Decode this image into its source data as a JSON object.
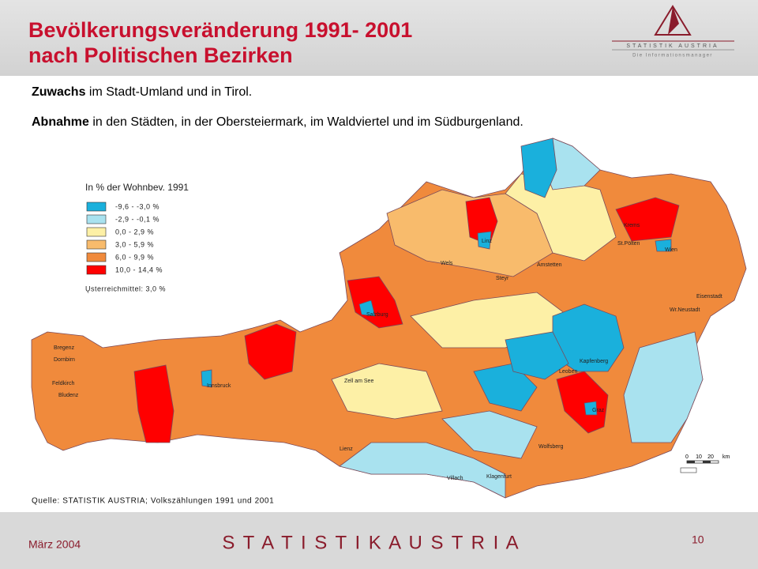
{
  "header": {
    "title_line1": "Bevölkerungsveränderung 1991- 2001",
    "title_line2": "nach Politischen Bezirken",
    "logo_name": "STATISTIK AUSTRIA",
    "logo_tagline": "Die Informationsmanager"
  },
  "bullets": [
    {
      "bold": "Zuwachs",
      "text": " im Stadt-Umland und in Tirol."
    },
    {
      "bold": "Abnahme",
      "text": " in den Städten, in der Obersteiermark, im Waldviertel und im Südburgenland."
    }
  ],
  "map": {
    "legend_title": "In % der Wohnbev. 1991",
    "legend": [
      {
        "label": "-9,6  -   -3,0 %",
        "color": "#1ab0dc"
      },
      {
        "label": "-2,9  -   -0,1 %",
        "color": "#a9e2ef"
      },
      {
        "label": "0,0  -    2,9 %",
        "color": "#fdf0a6"
      },
      {
        "label": "3,0  -    5,9 %",
        "color": "#f8bb6c"
      },
      {
        "label": "6,0  -    9,9 %",
        "color": "#f08a3c"
      },
      {
        "label": "10,0  -  14,4 %",
        "color": "#ff0000"
      }
    ],
    "average": "Ųsterreichmittel: 3,0 %",
    "towns": [
      "Bregenz",
      "Dornbirn",
      "Feldkirch",
      "Bludenz",
      "Innsbruck",
      "Salzburg",
      "Linz",
      "Wels",
      "Steyr",
      "Amstetten",
      "St.Pölten",
      "Krems",
      "Wien",
      "Eisenstadt",
      "Wr.Neustadt",
      "Kapfenberg",
      "Leoben",
      "Graz",
      "Zell am See",
      "Lienz",
      "Villach",
      "Klagenfurt",
      "Wolfsberg"
    ],
    "scale_labels": [
      "0",
      "10",
      "20",
      "km"
    ],
    "source": "Quelle: STATISTIK AUSTRIA; Volkszählungen 1991 und 2001"
  },
  "footer": {
    "date": "März 2004",
    "brand": "S T A T I S T I K   A U S T R I A",
    "page": "10"
  }
}
